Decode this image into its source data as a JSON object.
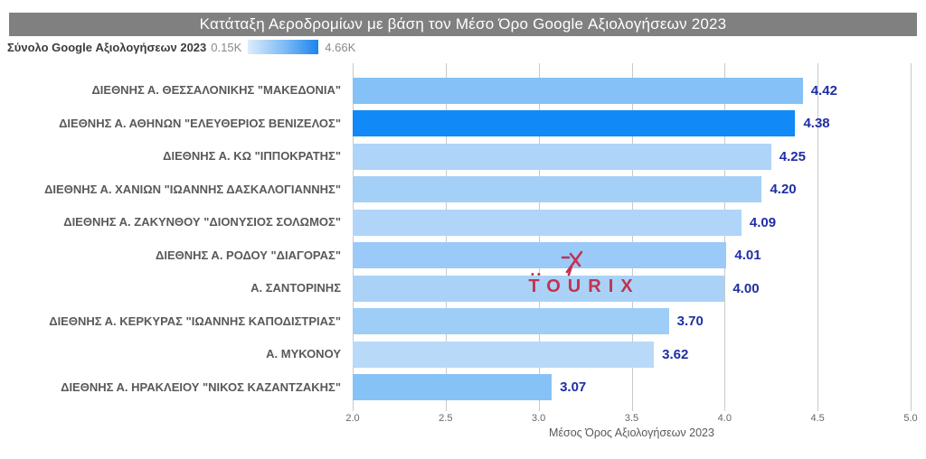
{
  "header": {
    "title": "Κατάταξη Αεροδρομίων με βάση τον Μέσο Όρο Google Αξιολογήσεων 2023"
  },
  "watermark": {
    "brand": "TOURIX"
  },
  "chart_data": {
    "type": "bar",
    "orientation": "horizontal",
    "title": "Κατάταξη Αεροδρομίων με βάση τον Μέσο Όρο Google Αξιολογήσεων 2023",
    "categories": [
      "ΔΙΕΘΝΗΣ Α. ΘΕΣΣΑΛΟΝΙΚΗΣ \"ΜΑΚΕΔΟΝΙΑ\"",
      "ΔΙΕΘΝΗΣ Α. ΑΘΗΝΩΝ \"ΕΛΕΥΘΕΡΙΟΣ ΒΕΝΙΖΕΛΟΣ\"",
      "ΔΙΕΘΝΗΣ Α. ΚΩ \"ΙΠΠΟΚΡΑΤΗΣ\"",
      "ΔΙΕΘΝΗΣ Α. ΧΑΝΙΩΝ \"ΙΩΑΝΝΗΣ ΔΑΣΚΑΛΟΓΙΑΝΝΗΣ\"",
      "ΔΙΕΘΝΗΣ Α. ΖΑΚΥΝΘΟΥ \"ΔΙΟΝΥΣΙΟΣ ΣΟΛΩΜΟΣ\"",
      "ΔΙΕΘΝΗΣ Α. ΡΟΔΟΥ \"ΔΙΑΓΟΡΑΣ\"",
      "Α. ΣΑΝΤΟΡΙΝΗΣ",
      "ΔΙΕΘΝΗΣ Α. ΚΕΡΚΥΡΑΣ \"ΙΩΑΝΝΗΣ ΚΑΠΟΔΙΣΤΡΙΑΣ\"",
      "Α. ΜΥΚΟΝΟΥ",
      "ΔΙΕΘΝΗΣ Α. ΗΡΑΚΛΕΙΟΥ \"ΝΙΚΟΣ ΚΑΖΑΝΤΖΑΚΗΣ\""
    ],
    "values": [
      4.42,
      4.38,
      4.25,
      4.2,
      4.09,
      4.01,
      4.0,
      3.7,
      3.62,
      3.07
    ],
    "value_labels": [
      "4.42",
      "4.38",
      "4.25",
      "4.20",
      "4.09",
      "4.01",
      "4.00",
      "3.70",
      "3.62",
      "3.07"
    ],
    "bar_colors": [
      "#85c1f7",
      "#118af8",
      "#aed4f8",
      "#a4cff7",
      "#b0d5f8",
      "#9bcaf9",
      "#aad2f7",
      "#9ecdf8",
      "#b8d9f8",
      "#87c2f7"
    ],
    "xlabel": "Μέσος Όρος Αξιολογήσεων 2023",
    "xlim": [
      2.0,
      5.0
    ],
    "xticks": [
      "2.0",
      "2.5",
      "3.0",
      "3.5",
      "4.0",
      "4.5",
      "5.0"
    ],
    "grid": "vertical",
    "legend_position": "top-left",
    "color_scale": {
      "field": "Σύνολο Google Αξιολογήσεων 2023",
      "min": "0.15K",
      "max": "4.66K",
      "min_color": "#dcecfb",
      "max_color": "#1b84ee"
    }
  },
  "colors": {
    "title_bar_bg": "#808080",
    "title_text": "#ffffff",
    "gridline": "#c9c9c9",
    "value_text": "#1f2fa3",
    "category_text": "#595959",
    "tick_text": "#666666",
    "watermark": "#c23350",
    "highlight_bar": "#118af8"
  }
}
